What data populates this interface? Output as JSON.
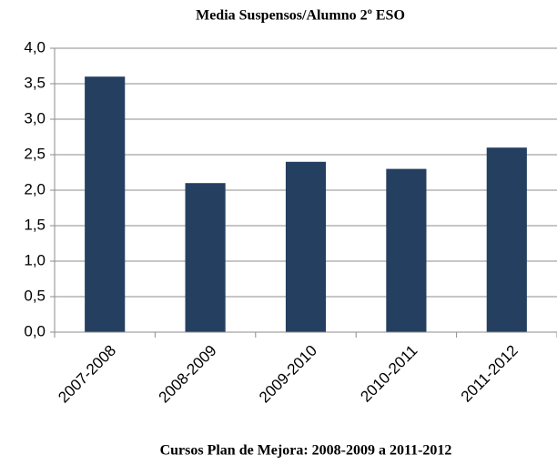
{
  "chart_data": {
    "type": "bar",
    "title": "Media Suspensos/Alumno 2º ESO",
    "x_label": "Cursos Plan de Mejora: 2008-2009 a 2011-2012",
    "categories": [
      "2007-2008",
      "2008-2009",
      "2009-2010",
      "2010-2011",
      "2011-2012"
    ],
    "values": [
      3.6,
      2.1,
      2.4,
      2.3,
      2.6
    ],
    "color": "#243f60",
    "ylim": [
      0,
      4
    ],
    "yticks": [
      {
        "value": 0,
        "label": "0,0"
      },
      {
        "value": 0.5,
        "label": "0,5"
      },
      {
        "value": 1,
        "label": "1,0"
      },
      {
        "value": 1.5,
        "label": "1,5"
      },
      {
        "value": 2,
        "label": "2,0"
      },
      {
        "value": 2.5,
        "label": "2,5"
      },
      {
        "value": 3,
        "label": "3,0"
      },
      {
        "value": 3.5,
        "label": "3,5"
      },
      {
        "value": 4,
        "label": "4,0"
      }
    ],
    "grid": true
  }
}
